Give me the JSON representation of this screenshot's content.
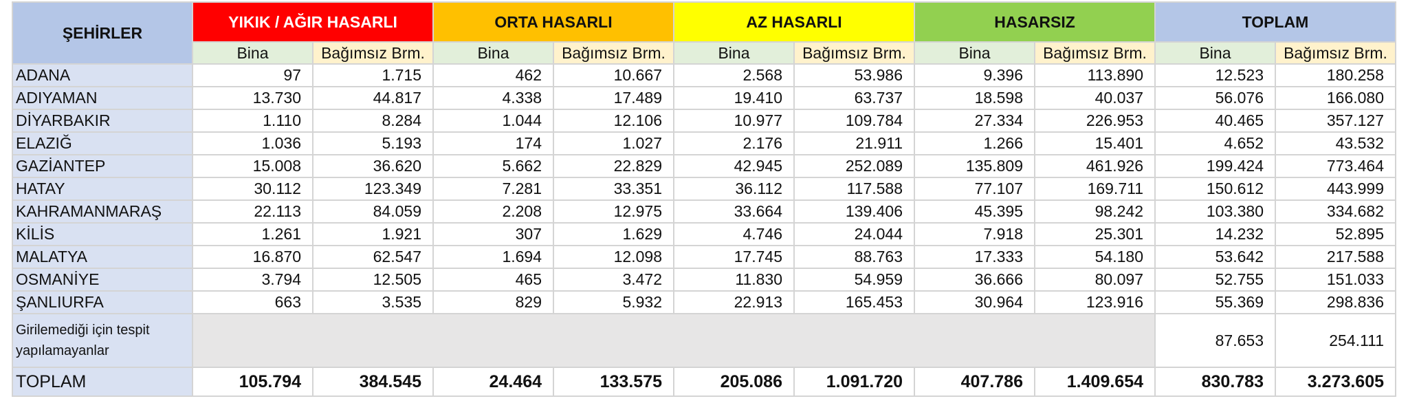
{
  "headers": {
    "city": "ŞEHİRLER",
    "groups": [
      "YIKIK / AĞIR HASARLI",
      "ORTA HASARLI",
      "AZ HASARLI",
      "HASARSIZ",
      "TOPLAM"
    ],
    "sub_bina": "Bina",
    "sub_bb": "Bağımsız Brm."
  },
  "colors": {
    "yikik": "#ff0000",
    "orta": "#ffc000",
    "az": "#ffff00",
    "hasarsiz": "#92d050",
    "toplam": "#b4c6e7"
  },
  "rows": [
    {
      "city": "ADANA",
      "v": [
        "97",
        "1.715",
        "462",
        "10.667",
        "2.568",
        "53.986",
        "9.396",
        "113.890",
        "12.523",
        "180.258"
      ]
    },
    {
      "city": "ADIYAMAN",
      "v": [
        "13.730",
        "44.817",
        "4.338",
        "17.489",
        "19.410",
        "63.737",
        "18.598",
        "40.037",
        "56.076",
        "166.080"
      ]
    },
    {
      "city": "DİYARBAKIR",
      "v": [
        "1.110",
        "8.284",
        "1.044",
        "12.106",
        "10.977",
        "109.784",
        "27.334",
        "226.953",
        "40.465",
        "357.127"
      ]
    },
    {
      "city": "ELAZIĞ",
      "v": [
        "1.036",
        "5.193",
        "174",
        "1.027",
        "2.176",
        "21.911",
        "1.266",
        "15.401",
        "4.652",
        "43.532"
      ]
    },
    {
      "city": "GAZİANTEP",
      "v": [
        "15.008",
        "36.620",
        "5.662",
        "22.829",
        "42.945",
        "252.089",
        "135.809",
        "461.926",
        "199.424",
        "773.464"
      ]
    },
    {
      "city": "HATAY",
      "v": [
        "30.112",
        "123.349",
        "7.281",
        "33.351",
        "36.112",
        "117.588",
        "77.107",
        "169.711",
        "150.612",
        "443.999"
      ]
    },
    {
      "city": "KAHRAMANMARAŞ",
      "v": [
        "22.113",
        "84.059",
        "2.208",
        "12.975",
        "33.664",
        "139.406",
        "45.395",
        "98.242",
        "103.380",
        "334.682"
      ]
    },
    {
      "city": "KİLİS",
      "v": [
        "1.261",
        "1.921",
        "307",
        "1.629",
        "4.746",
        "24.044",
        "7.918",
        "25.301",
        "14.232",
        "52.895"
      ]
    },
    {
      "city": "MALATYA",
      "v": [
        "16.870",
        "62.547",
        "1.694",
        "12.098",
        "17.745",
        "88.763",
        "17.333",
        "54.180",
        "53.642",
        "217.588"
      ]
    },
    {
      "city": "OSMANİYE",
      "v": [
        "3.794",
        "12.505",
        "465",
        "3.472",
        "11.830",
        "54.959",
        "36.666",
        "80.097",
        "52.755",
        "151.033"
      ]
    },
    {
      "city": "ŞANLIURFA",
      "v": [
        "663",
        "3.535",
        "829",
        "5.932",
        "22.913",
        "165.453",
        "30.964",
        "123.916",
        "55.369",
        "298.836"
      ]
    }
  ],
  "note": {
    "label": "Girilemediği için tespit yapılamayanlar",
    "bina": "87.653",
    "bb": "254.111"
  },
  "total": {
    "label": "TOPLAM",
    "v": [
      "105.794",
      "384.545",
      "24.464",
      "133.575",
      "205.086",
      "1.091.720",
      "407.786",
      "1.409.654",
      "830.783",
      "3.273.605"
    ]
  }
}
